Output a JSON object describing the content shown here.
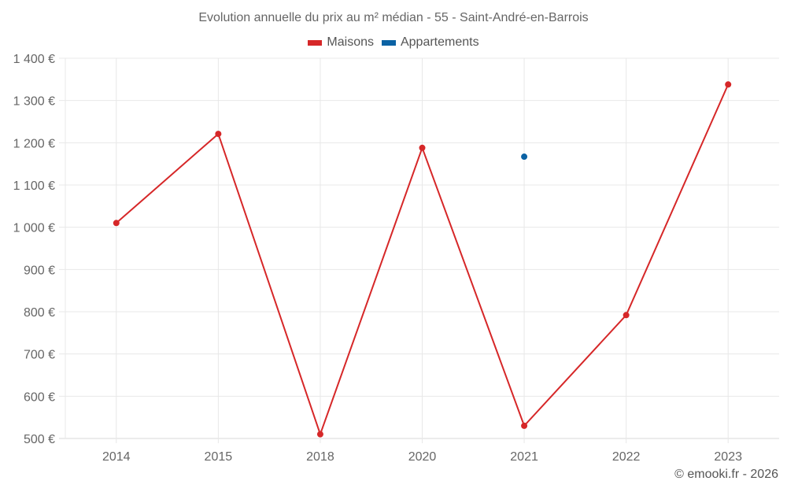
{
  "title": "Evolution annuelle du prix au m² médian - 55 - Saint-André-en-Barrois",
  "legend": [
    {
      "label": "Maisons",
      "color": "#d62728"
    },
    {
      "label": "Appartements",
      "color": "#0b62a4"
    }
  ],
  "credit": "© emooki.fr - 2026",
  "colors": {
    "maisons": "#d62728",
    "appartements": "#0b62a4",
    "grid": "#e8e8e8",
    "axis_text": "#666666"
  },
  "chart_data": {
    "type": "line",
    "title": "Evolution annuelle du prix au m² médian - 55 - Saint-André-en-Barrois",
    "xlabel": "",
    "ylabel": "",
    "categories": [
      "2014",
      "2015",
      "2018",
      "2020",
      "2021",
      "2022",
      "2023"
    ],
    "series": [
      {
        "name": "Maisons",
        "color": "#d62728",
        "values": [
          1010,
          1221,
          510,
          1188,
          530,
          792,
          1338
        ]
      },
      {
        "name": "Appartements",
        "color": "#0b62a4",
        "values": [
          null,
          null,
          null,
          null,
          1167,
          null,
          null
        ]
      }
    ],
    "ylim": [
      500,
      1400
    ],
    "yticks": [
      500,
      600,
      700,
      800,
      900,
      1000,
      1100,
      1200,
      1300,
      1400
    ],
    "ytick_labels": [
      "500 €",
      "600 €",
      "700 €",
      "800 €",
      "900 €",
      "1 000 €",
      "1 100 €",
      "1 200 €",
      "1 300 €",
      "1 400 €"
    ],
    "grid": true,
    "legend_position": "top"
  }
}
